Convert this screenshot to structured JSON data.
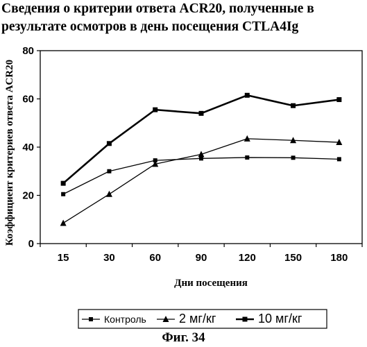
{
  "title_lines": [
    "Сведения о критерии ответа ACR20, полученные в",
    "результате осмотров в день посещения CTLA4Ig"
  ],
  "caption": "Фиг. 34",
  "chart_data": {
    "type": "line",
    "title": "Сведения о критерии ответа ACR20, полученные в результате осмотров в день посещения CTLA4Ig",
    "xlabel": "Дни посещения",
    "ylabel": "Коэффициент критериев ответа ACR20",
    "categories": [
      "15",
      "30",
      "60",
      "90",
      "120",
      "150",
      "180"
    ],
    "ylim": [
      0,
      80
    ],
    "yticks": [
      0,
      20,
      40,
      60,
      80
    ],
    "grid": false,
    "legend_position": "bottom",
    "series": [
      {
        "name": "Контроль",
        "marker": "square",
        "color": "#000000",
        "values": [
          20.5,
          30.0,
          34.5,
          35.3,
          35.7,
          35.6,
          35.0
        ]
      },
      {
        "name": "2 мг/кг",
        "marker": "triangle",
        "color": "#000000",
        "values": [
          8.5,
          20.5,
          33.0,
          37.0,
          43.5,
          42.8,
          42.0
        ]
      },
      {
        "name": "10 мг/кг",
        "marker": "square",
        "color": "#000000",
        "values": [
          25.0,
          41.5,
          55.5,
          54.0,
          61.5,
          57.2,
          59.7
        ]
      }
    ]
  }
}
